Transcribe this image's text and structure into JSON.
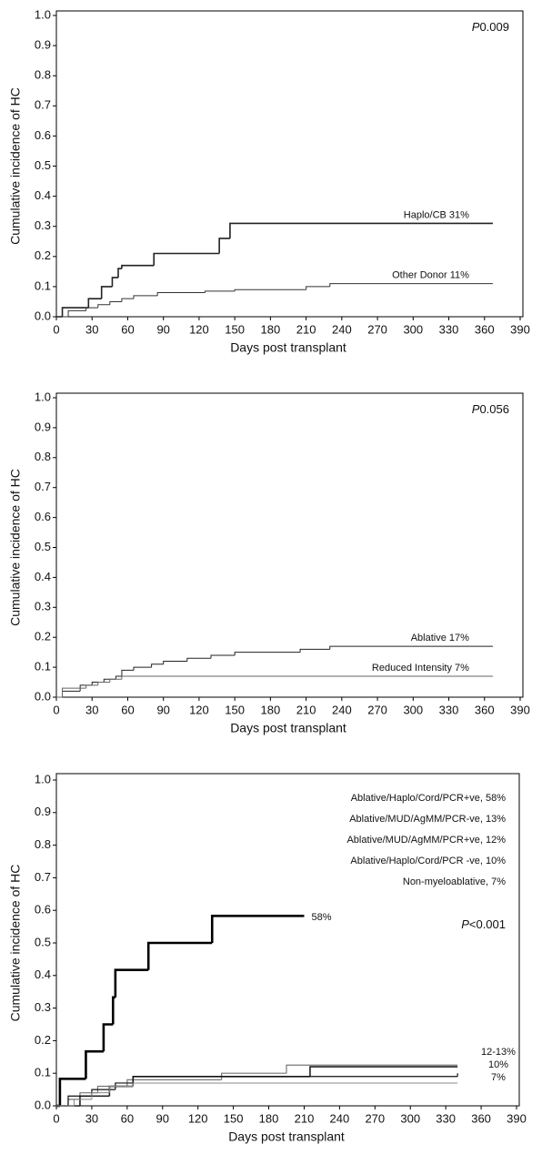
{
  "chart_data": [
    {
      "type": "step",
      "ylabel": "Cumulative incidence of HC",
      "xlabel": "Days post transplant",
      "xlim": [
        0,
        390
      ],
      "ylim": [
        0,
        1
      ],
      "legend": "line-end",
      "xticks": [
        0,
        30,
        60,
        90,
        120,
        150,
        180,
        210,
        240,
        270,
        300,
        330,
        360,
        390
      ],
      "yticks": [
        {
          "value": 0,
          "label": "0.0"
        },
        0.1,
        0.2,
        0.3,
        0.4,
        0.5,
        0.6,
        0.7,
        0.8,
        0.9,
        {
          "value": 1,
          "label": "1.0"
        }
      ],
      "pvalue": {
        "symbol": "P",
        "text": "0.009"
      },
      "series": [
        {
          "name": "Haplo/CB 31%",
          "color": "#222222",
          "width": 1.6,
          "x": [
            0,
            5,
            27,
            38,
            47,
            52,
            55,
            82,
            137,
            146,
            367
          ],
          "values": [
            0,
            0.03,
            0.06,
            0.1,
            0.13,
            0.16,
            0.17,
            0.21,
            0.26,
            0.31,
            0.31
          ]
        },
        {
          "name": "Other Donor 11%",
          "color": "#333333",
          "width": 1,
          "x": [
            0,
            10,
            25,
            35,
            45,
            55,
            65,
            85,
            125,
            150,
            210,
            230,
            367
          ],
          "values": [
            0,
            0.02,
            0.03,
            0.04,
            0.05,
            0.06,
            0.07,
            0.08,
            0.085,
            0.09,
            0.1,
            0.11,
            0.11
          ]
        }
      ]
    },
    {
      "type": "step",
      "ylabel": "Cumulative incidence of HC",
      "xlabel": "Days post transplant",
      "xlim": [
        0,
        390
      ],
      "ylim": [
        0,
        1
      ],
      "legend": "line-end",
      "xticks": [
        0,
        30,
        60,
        90,
        120,
        150,
        180,
        210,
        240,
        270,
        300,
        330,
        360,
        390
      ],
      "yticks": [
        {
          "value": 0,
          "label": "0.0"
        },
        0.1,
        0.2,
        0.3,
        0.4,
        0.5,
        0.6,
        0.7,
        0.8,
        0.9,
        {
          "value": 1,
          "label": "1.0"
        }
      ],
      "pvalue": {
        "symbol": "P",
        "text": "0.056"
      },
      "series": [
        {
          "name": "Ablative 17%",
          "color": "#222222",
          "width": 1,
          "x": [
            0,
            5,
            20,
            30,
            40,
            50,
            55,
            65,
            80,
            90,
            110,
            130,
            150,
            205,
            230,
            367
          ],
          "values": [
            0,
            0.02,
            0.04,
            0.05,
            0.06,
            0.07,
            0.09,
            0.1,
            0.11,
            0.12,
            0.13,
            0.14,
            0.15,
            0.16,
            0.17,
            0.17
          ]
        },
        {
          "name": "Reduced Intensity 7%",
          "color": "#666666",
          "width": 1,
          "x": [
            0,
            5,
            25,
            35,
            45,
            55,
            367
          ],
          "values": [
            0,
            0.03,
            0.04,
            0.05,
            0.06,
            0.07,
            0.07
          ]
        }
      ]
    },
    {
      "type": "step",
      "ylabel": "Cumulative incidence of HC",
      "xlabel": "Days post transplant",
      "xlim": [
        0,
        390
      ],
      "ylim": [
        0,
        1
      ],
      "legend": "top-right",
      "xticks": [
        0,
        30,
        60,
        90,
        120,
        150,
        180,
        210,
        240,
        270,
        300,
        330,
        360,
        390
      ],
      "yticks": [
        {
          "value": 0,
          "label": "0.0"
        },
        0.1,
        0.2,
        0.3,
        0.4,
        0.5,
        0.6,
        0.7,
        0.8,
        0.9,
        {
          "value": 1,
          "label": "1.0"
        }
      ],
      "pvalue": {
        "symbol": "P",
        "text": "<0.001"
      },
      "series": [
        {
          "name": "Ablative/Haplo/Cord/PCR+ve, 58%",
          "color": "#000000",
          "width": 2.6,
          "end_label": "58%",
          "x": [
            0,
            3,
            25,
            40,
            48,
            50,
            78,
            132,
            210
          ],
          "values": [
            0,
            0.083,
            0.167,
            0.25,
            0.333,
            0.417,
            0.5,
            0.583,
            0.583
          ]
        },
        {
          "name": "Ablative/MUD/AgMM/PCR-ve, 13%",
          "color": "#777777",
          "width": 1.2,
          "end_label": "12-13%",
          "x": [
            0,
            10,
            20,
            35,
            60,
            140,
            195,
            340
          ],
          "values": [
            0,
            0.02,
            0.04,
            0.06,
            0.08,
            0.1,
            0.125,
            0.125
          ]
        },
        {
          "name": "Ablative/MUD/AgMM/PCR+ve, 12%",
          "color": "#222222",
          "width": 1.6,
          "x": [
            0,
            20,
            45,
            65,
            215,
            340
          ],
          "values": [
            0,
            0.03,
            0.06,
            0.09,
            0.12,
            0.12
          ]
        },
        {
          "name": "Ablative/Haplo/Cord/PCR -ve, 10%",
          "color": "#111111",
          "width": 1.2,
          "end_label": "10%",
          "x": [
            0,
            10,
            30,
            50,
            65,
            340
          ],
          "values": [
            0,
            0.03,
            0.05,
            0.07,
            0.09,
            0.1
          ]
        },
        {
          "name": "Non-myeloablative, 7%",
          "color": "#888888",
          "width": 1,
          "end_label": "7%",
          "x": [
            0,
            15,
            30,
            45,
            65,
            340
          ],
          "values": [
            0,
            0.02,
            0.04,
            0.06,
            0.07,
            0.07
          ]
        }
      ]
    }
  ]
}
